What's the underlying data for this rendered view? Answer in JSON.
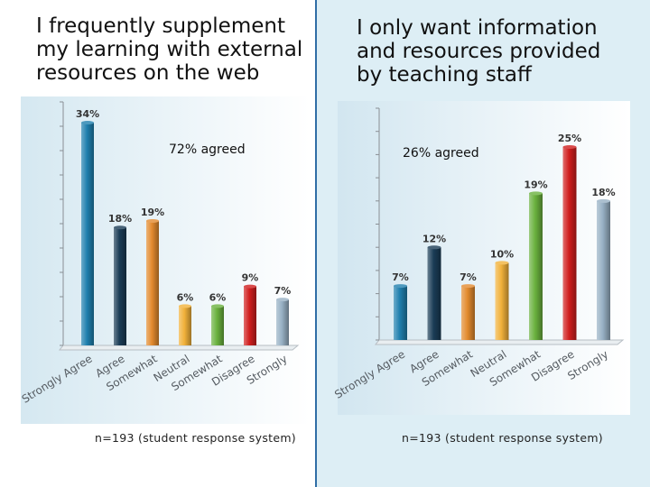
{
  "slide": {
    "left": {
      "heading": "I frequently supplement my learning with external resources on the web",
      "annotation": "72% agreed",
      "source": "n=193 (student response system)"
    },
    "right": {
      "heading": "I only want information and resources provided by teaching staff",
      "annotation": "26% agreed",
      "source": "n=193 (student response system)"
    }
  },
  "colors": {
    "Strongly Agree": "#1f7fae",
    "Agree": "#1a3c56",
    "Somewhat": "#e28a2e",
    "Neutral": "#f1b13a",
    "Somewhat_d": "#6ab13e",
    "Disagree": "#d01e1e",
    "Strongly": "#97b0c4",
    "label_text": "#333333",
    "right_panel_border": "#2f6ea6"
  },
  "chart_data": [
    {
      "type": "bar",
      "categories": [
        "Strongly Agree",
        "Agree",
        "Somewhat",
        "Neutral",
        "Somewhat",
        "Disagree",
        "Strongly"
      ],
      "values": [
        34,
        18,
        19,
        6,
        6,
        9,
        7
      ],
      "data_labels": [
        "34%",
        "18%",
        "19%",
        "6%",
        "6%",
        "9%",
        "7%"
      ],
      "title": "I frequently supplement my learning with external resources on the web",
      "colors": [
        "#1f7fae",
        "#1a3c56",
        "#e28a2e",
        "#f1b13a",
        "#6ab13e",
        "#d01e1e",
        "#97b0c4"
      ],
      "ylim": [
        0,
        34
      ],
      "grid": false,
      "y_tick_labels": false
    },
    {
      "type": "bar",
      "categories": [
        "Strongly Agree",
        "Agree",
        "Somewhat",
        "Neutral",
        "Somewhat",
        "Disagree",
        "Strongly"
      ],
      "values": [
        7,
        12,
        7,
        10,
        19,
        25,
        18
      ],
      "data_labels": [
        "7%",
        "12%",
        "7%",
        "10%",
        "19%",
        "25%",
        "18%"
      ],
      "title": "I only want information and resources provided by teaching staff",
      "colors": [
        "#1f7fae",
        "#1a3c56",
        "#e28a2e",
        "#f1b13a",
        "#6ab13e",
        "#d01e1e",
        "#97b0c4"
      ],
      "ylim": [
        0,
        25
      ],
      "grid": false,
      "y_tick_labels": false
    }
  ]
}
